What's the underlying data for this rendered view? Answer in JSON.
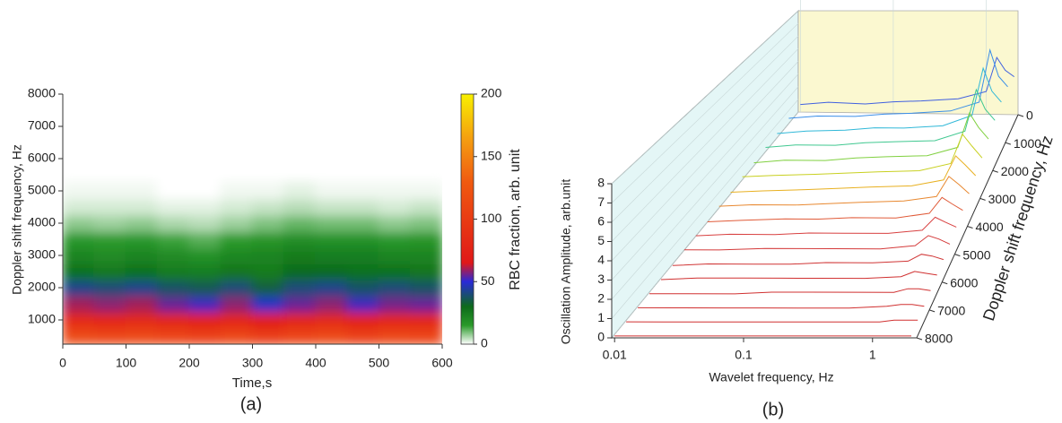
{
  "chart_data": [
    {
      "type": "heatmap",
      "panel_label": "(a)",
      "xlabel": "Time,s",
      "ylabel": "Doppler shift frequency, Hz",
      "colorbar_label": "RBC fraction, arb. unit",
      "xlim": [
        0,
        600
      ],
      "xticks": [
        0,
        100,
        200,
        300,
        400,
        500,
        600
      ],
      "ylim": [
        250,
        8000
      ],
      "yticks": [
        1000,
        2000,
        3000,
        4000,
        5000,
        6000,
        7000,
        8000
      ],
      "zlim": [
        0,
        200
      ],
      "zticks": [
        0,
        50,
        100,
        150,
        200
      ],
      "colorscale": [
        [
          0,
          "#ffffff"
        ],
        [
          15,
          "#2a9a2a"
        ],
        [
          30,
          "#0d6b1a"
        ],
        [
          50,
          "#2a2ad8"
        ],
        [
          65,
          "#e01818"
        ],
        [
          130,
          "#f05a10"
        ],
        [
          165,
          "#f5a010"
        ],
        [
          200,
          "#f8f000"
        ]
      ],
      "x": [
        0,
        50,
        100,
        150,
        200,
        250,
        300,
        350,
        400,
        450,
        500,
        550,
        600
      ],
      "y": [
        250,
        750,
        1250,
        1750,
        2250,
        2750,
        3250,
        3750,
        4250,
        4750,
        5250
      ],
      "values": [
        [
          115,
          110,
          112,
          108,
          105,
          110,
          100,
          108,
          112,
          105,
          110,
          108
        ],
        [
          85,
          80,
          82,
          78,
          75,
          80,
          70,
          78,
          82,
          75,
          80,
          78
        ],
        [
          60,
          58,
          60,
          55,
          52,
          58,
          48,
          55,
          58,
          52,
          56,
          55
        ],
        [
          42,
          40,
          42,
          38,
          36,
          40,
          34,
          40,
          42,
          38,
          40,
          38
        ],
        [
          28,
          26,
          28,
          25,
          24,
          27,
          25,
          30,
          30,
          28,
          28,
          27
        ],
        [
          22,
          20,
          22,
          20,
          18,
          21,
          22,
          25,
          24,
          24,
          22,
          22
        ],
        [
          16,
          15,
          16,
          14,
          12,
          15,
          17,
          19,
          18,
          18,
          16,
          17
        ],
        [
          8,
          7,
          8,
          6,
          5,
          7,
          9,
          11,
          10,
          10,
          8,
          9
        ],
        [
          3,
          3,
          3,
          2,
          2,
          3,
          4,
          5,
          4,
          4,
          3,
          4
        ],
        [
          1,
          1,
          1,
          0,
          0,
          1,
          1,
          2,
          1,
          1,
          1,
          1
        ]
      ]
    },
    {
      "type": "waterfall",
      "panel_label": "(b)",
      "xlabel": "Wavelet frequency, Hz",
      "ylabel": "Oscillation Amplitude, arb.unit",
      "depth_label": "Doppler shift frequency, Hz",
      "xlog": true,
      "xlim": [
        0.0095,
        2.2
      ],
      "xticks": [
        0.01,
        0.1,
        1
      ],
      "ylim": [
        0,
        8
      ],
      "yticks": [
        0,
        1,
        2,
        3,
        4,
        5,
        6,
        7,
        8
      ],
      "dlim": [
        0,
        8000
      ],
      "dticks": [
        0,
        1000,
        2000,
        3000,
        4000,
        5000,
        6000,
        7000,
        8000
      ],
      "x": [
        0.01,
        0.02,
        0.05,
        0.1,
        0.2,
        0.5,
        1,
        1.3,
        1.6,
        2
      ],
      "series": [
        {
          "doppler": 0,
          "color": "#4060e0",
          "values": [
            0.6,
            0.8,
            0.7,
            0.9,
            1.0,
            1.2,
            1.8,
            4.5,
            3.5,
            3.0
          ]
        },
        {
          "doppler": 500,
          "color": "#3a8ee8",
          "values": [
            0.6,
            0.8,
            0.8,
            1.0,
            1.1,
            1.3,
            2.0,
            6.0,
            4.0,
            3.2
          ]
        },
        {
          "doppler": 1000,
          "color": "#30b8d8",
          "values": [
            0.5,
            0.7,
            0.8,
            1.0,
            1.0,
            1.2,
            2.0,
            5.5,
            3.8,
            3.0
          ]
        },
        {
          "doppler": 1500,
          "color": "#40c890",
          "values": [
            0.5,
            0.7,
            0.7,
            0.9,
            1.0,
            1.1,
            1.8,
            4.8,
            3.4,
            2.6
          ]
        },
        {
          "doppler": 2000,
          "color": "#80d040",
          "values": [
            0.4,
            0.6,
            0.6,
            0.8,
            0.9,
            1.0,
            1.6,
            4.0,
            3.0,
            2.2
          ]
        },
        {
          "doppler": 2500,
          "color": "#c8d020",
          "values": [
            0.4,
            0.5,
            0.6,
            0.7,
            0.8,
            0.9,
            1.4,
            3.4,
            2.6,
            1.8
          ]
        },
        {
          "doppler": 3000,
          "color": "#e8b020",
          "values": [
            0.3,
            0.4,
            0.5,
            0.6,
            0.7,
            0.8,
            1.2,
            2.8,
            2.2,
            1.5
          ]
        },
        {
          "doppler": 3500,
          "color": "#e88830",
          "values": [
            0.3,
            0.4,
            0.4,
            0.5,
            0.6,
            0.7,
            1.0,
            2.3,
            1.8,
            1.2
          ]
        },
        {
          "doppler": 4000,
          "color": "#e05a38",
          "values": [
            0.2,
            0.3,
            0.4,
            0.4,
            0.5,
            0.5,
            0.8,
            1.8,
            1.4,
            1.0
          ]
        },
        {
          "doppler": 4500,
          "color": "#d84040",
          "values": [
            0.2,
            0.3,
            0.3,
            0.4,
            0.4,
            0.4,
            0.6,
            1.4,
            1.1,
            0.8
          ]
        },
        {
          "doppler": 5000,
          "color": "#d43a3a",
          "values": [
            0.2,
            0.2,
            0.3,
            0.3,
            0.3,
            0.3,
            0.5,
            1.1,
            0.9,
            0.6
          ]
        },
        {
          "doppler": 5500,
          "color": "#d03535",
          "values": [
            0.1,
            0.2,
            0.2,
            0.2,
            0.3,
            0.3,
            0.4,
            0.8,
            0.7,
            0.5
          ]
        },
        {
          "doppler": 6000,
          "color": "#d03030",
          "values": [
            0.1,
            0.2,
            0.2,
            0.2,
            0.2,
            0.2,
            0.3,
            0.6,
            0.5,
            0.4
          ]
        },
        {
          "doppler": 6500,
          "color": "#d03030",
          "values": [
            0.1,
            0.1,
            0.1,
            0.2,
            0.2,
            0.2,
            0.2,
            0.4,
            0.4,
            0.3
          ]
        },
        {
          "doppler": 7000,
          "color": "#d03030",
          "values": [
            0.1,
            0.1,
            0.1,
            0.1,
            0.1,
            0.1,
            0.2,
            0.3,
            0.3,
            0.2
          ]
        },
        {
          "doppler": 7500,
          "color": "#d03030",
          "values": [
            0.1,
            0.1,
            0.1,
            0.1,
            0.1,
            0.1,
            0.1,
            0.2,
            0.2,
            0.2
          ]
        },
        {
          "doppler": 8000,
          "color": "#d03030",
          "values": [
            0.1,
            0.1,
            0.1,
            0.1,
            0.1,
            0.1,
            0.1,
            0.1,
            0.1,
            0.1
          ]
        }
      ]
    }
  ]
}
